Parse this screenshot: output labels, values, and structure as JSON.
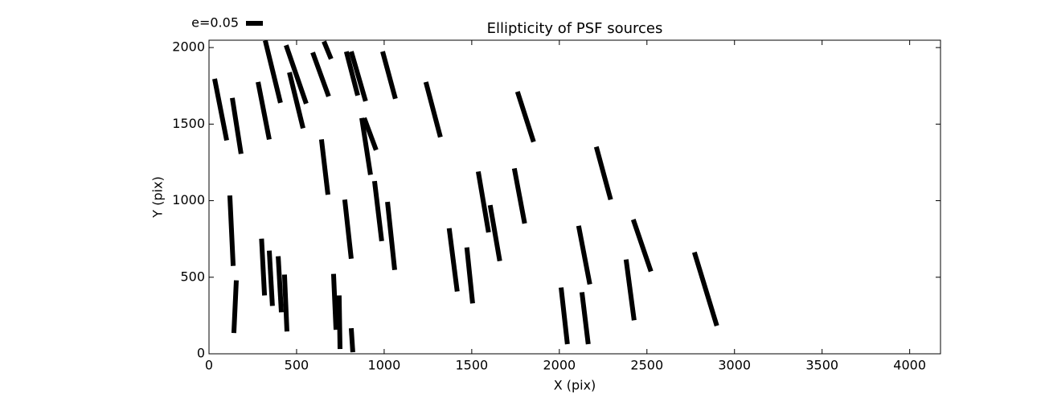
{
  "chart_data": {
    "type": "segments",
    "title": "Ellipticity of PSF sources",
    "xlabel": "X (pix)",
    "ylabel": "Y (pix)",
    "legend_label": "e=0.05",
    "legend": "upper left",
    "color": "#000000",
    "xlim": [
      0,
      4176
    ],
    "ylim": [
      0,
      2048
    ],
    "xticks": [
      0,
      500,
      1000,
      1500,
      2000,
      2500,
      3000,
      3500,
      4000
    ],
    "yticks": [
      0,
      500,
      1000,
      1500,
      2000
    ],
    "segments": [
      [
        32,
        1796,
        101,
        1394
      ],
      [
        133,
        1671,
        183,
        1306
      ],
      [
        280,
        1775,
        344,
        1400
      ],
      [
        321,
        2046,
        408,
        1639
      ],
      [
        440,
        2015,
        555,
        1634
      ],
      [
        459,
        1838,
        537,
        1473
      ],
      [
        592,
        1968,
        683,
        1681
      ],
      [
        656,
        2040,
        697,
        1926
      ],
      [
        784,
        1974,
        849,
        1687
      ],
      [
        812,
        1974,
        894,
        1650
      ],
      [
        991,
        1974,
        1064,
        1666
      ],
      [
        1238,
        1775,
        1321,
        1415
      ],
      [
        1761,
        1712,
        1853,
        1384
      ],
      [
        872,
        1540,
        922,
        1169
      ],
      [
        886,
        1540,
        954,
        1331
      ],
      [
        642,
        1400,
        679,
        1039
      ],
      [
        119,
        1034,
        138,
        574
      ],
      [
        775,
        1007,
        812,
        621
      ],
      [
        945,
        1128,
        986,
        736
      ],
      [
        1019,
        992,
        1060,
        548
      ],
      [
        1537,
        1190,
        1596,
        793
      ],
      [
        1605,
        971,
        1660,
        606
      ],
      [
        1743,
        1211,
        1802,
        851
      ],
      [
        2211,
        1352,
        2293,
        1007
      ],
      [
        1371,
        820,
        1417,
        407
      ],
      [
        1472,
        695,
        1505,
        329
      ],
      [
        2110,
        836,
        2174,
        454
      ],
      [
        2422,
        877,
        2523,
        538
      ],
      [
        2381,
        616,
        2427,
        219
      ],
      [
        2771,
        663,
        2899,
        183
      ],
      [
        2010,
        433,
        2046,
        63
      ],
      [
        2129,
        402,
        2165,
        63
      ],
      [
        300,
        752,
        317,
        381
      ],
      [
        344,
        674,
        362,
        313
      ],
      [
        395,
        637,
        413,
        271
      ],
      [
        431,
        517,
        445,
        146
      ],
      [
        156,
        480,
        142,
        136
      ],
      [
        711,
        522,
        725,
        157
      ],
      [
        743,
        381,
        748,
        31
      ],
      [
        812,
        167,
        821,
        10
      ]
    ]
  }
}
